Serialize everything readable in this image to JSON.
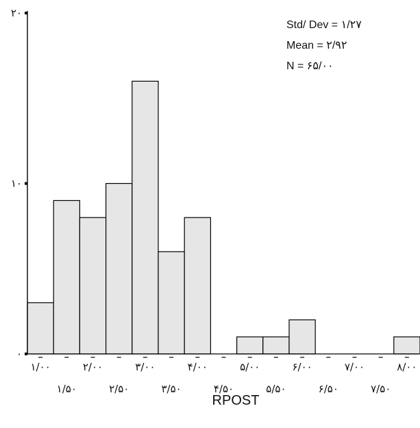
{
  "chart_data": {
    "type": "bar",
    "subtype": "histogram",
    "xlabel": "RPOST",
    "ylabel": "",
    "ylim": [
      0,
      20
    ],
    "y_ticks": [
      {
        "value": 0,
        "label": "۰"
      },
      {
        "value": 10,
        "label": "۱۰"
      },
      {
        "value": 20,
        "label": "۲۰"
      }
    ],
    "bin_width": 0.5,
    "bins": [
      {
        "center": 1.0,
        "count": 3
      },
      {
        "center": 1.5,
        "count": 9
      },
      {
        "center": 2.0,
        "count": 8
      },
      {
        "center": 2.5,
        "count": 10
      },
      {
        "center": 3.0,
        "count": 16
      },
      {
        "center": 3.5,
        "count": 6
      },
      {
        "center": 4.0,
        "count": 8
      },
      {
        "center": 4.5,
        "count": 0
      },
      {
        "center": 5.0,
        "count": 1
      },
      {
        "center": 5.5,
        "count": 1
      },
      {
        "center": 6.0,
        "count": 2
      },
      {
        "center": 6.5,
        "count": 0
      },
      {
        "center": 7.0,
        "count": 0
      },
      {
        "center": 7.5,
        "count": 0
      },
      {
        "center": 8.0,
        "count": 1
      }
    ],
    "x_tick_labels": [
      {
        "value": 1.0,
        "label": "۱/۰۰"
      },
      {
        "value": 1.5,
        "label": "۱/۵۰"
      },
      {
        "value": 2.0,
        "label": "۲/۰۰"
      },
      {
        "value": 2.5,
        "label": "۲/۵۰"
      },
      {
        "value": 3.0,
        "label": "۳/۰۰"
      },
      {
        "value": 3.5,
        "label": "۳/۵۰"
      },
      {
        "value": 4.0,
        "label": "۴/۰۰"
      },
      {
        "value": 4.5,
        "label": "۴/۵۰"
      },
      {
        "value": 5.0,
        "label": "۵/۰۰"
      },
      {
        "value": 5.5,
        "label": "۵/۵۰"
      },
      {
        "value": 6.0,
        "label": "۶/۰۰"
      },
      {
        "value": 6.5,
        "label": "۶/۵۰"
      },
      {
        "value": 7.0,
        "label": "۷/۰۰"
      },
      {
        "value": 7.5,
        "label": "۷/۵۰"
      },
      {
        "value": 8.0,
        "label": "۸/۰۰"
      }
    ],
    "stats": [
      "Std/ Dev = ۱/۲۷",
      "Mean = ۲/۹۲",
      "N = ۶۵/۰۰"
    ],
    "bar_fill": "#e6e6e6",
    "bar_stroke": "#000000",
    "grid": false
  }
}
